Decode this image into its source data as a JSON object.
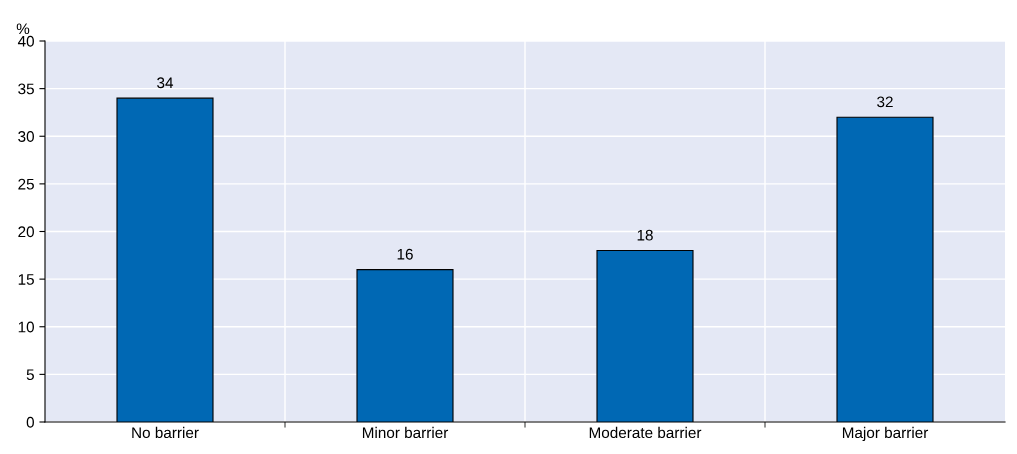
{
  "chart_data": {
    "type": "bar",
    "ylabel": "%",
    "categories": [
      "No barrier",
      "Minor barrier",
      "Moderate barrier",
      "Major barrier"
    ],
    "values": [
      34,
      16,
      18,
      32
    ],
    "color": "#0068b4",
    "ylim": [
      0,
      40
    ],
    "yticks": [
      0,
      5,
      10,
      15,
      20,
      25,
      30,
      35,
      40
    ],
    "grid": true,
    "data_labels": true
  }
}
